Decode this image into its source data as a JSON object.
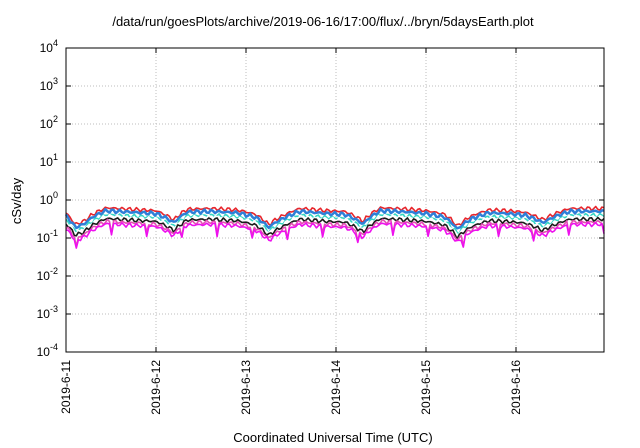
{
  "chart_data": {
    "type": "line",
    "title": "/data/run/goesPlots/archive/2019-06-16/17:00/flux/../bryn/5daysEarth.plot",
    "xlabel": "Coordinated Universal Time (UTC)",
    "ylabel": "cSv/day",
    "y_scale": "log",
    "ylim": [
      0.0001,
      10000
    ],
    "y_ticks": [
      {
        "base": "10",
        "exp": "-4"
      },
      {
        "base": "10",
        "exp": "-3"
      },
      {
        "base": "10",
        "exp": "-2"
      },
      {
        "base": "10",
        "exp": "-1"
      },
      {
        "base": "10",
        "exp": "0"
      },
      {
        "base": "10",
        "exp": "1"
      },
      {
        "base": "10",
        "exp": "2"
      },
      {
        "base": "10",
        "exp": "3"
      },
      {
        "base": "10",
        "exp": "4"
      }
    ],
    "xlim": [
      "2019-06-11 00:00",
      "2019-06-16 17:00"
    ],
    "x_ticks": [
      "2019-6-11",
      "2019-6-12",
      "2019-6-13",
      "2019-6-14",
      "2019-6-15",
      "2019-6-16"
    ],
    "grid": true,
    "legend": "none",
    "series": [
      {
        "color": "#e8252b",
        "base": 0.5
      },
      {
        "color": "#2e7fd8",
        "base": 0.42
      },
      {
        "color": "#35d6c4",
        "base": 0.33
      },
      {
        "color": "#ffffff",
        "base": 0.3
      },
      {
        "color": "#1a1a1a",
        "base": 0.26
      },
      {
        "color": "#e34fb3",
        "base": 0.22
      },
      {
        "color": "#ee10ee",
        "base": 0.19
      }
    ],
    "profile": {
      "x_days": [
        0,
        0.1,
        0.2,
        0.3,
        0.45,
        0.7,
        1.0,
        1.2,
        1.35,
        1.6,
        1.9,
        2.1,
        2.25,
        2.4,
        2.6,
        2.9,
        3.1,
        3.3,
        3.5,
        3.8,
        4.0,
        4.2,
        4.35,
        4.5,
        4.7,
        4.9,
        5.1,
        5.3,
        5.6,
        5.71
      ],
      "factor": [
        0.9,
        0.45,
        0.55,
        0.85,
        1.25,
        1.15,
        1.05,
        0.6,
        1.15,
        1.2,
        1.1,
        0.85,
        0.45,
        0.75,
        1.2,
        1.05,
        1.0,
        0.55,
        1.25,
        1.15,
        1.05,
        0.85,
        0.4,
        0.75,
        1.1,
        1.05,
        0.95,
        0.6,
        1.2,
        1.2
      ]
    }
  }
}
